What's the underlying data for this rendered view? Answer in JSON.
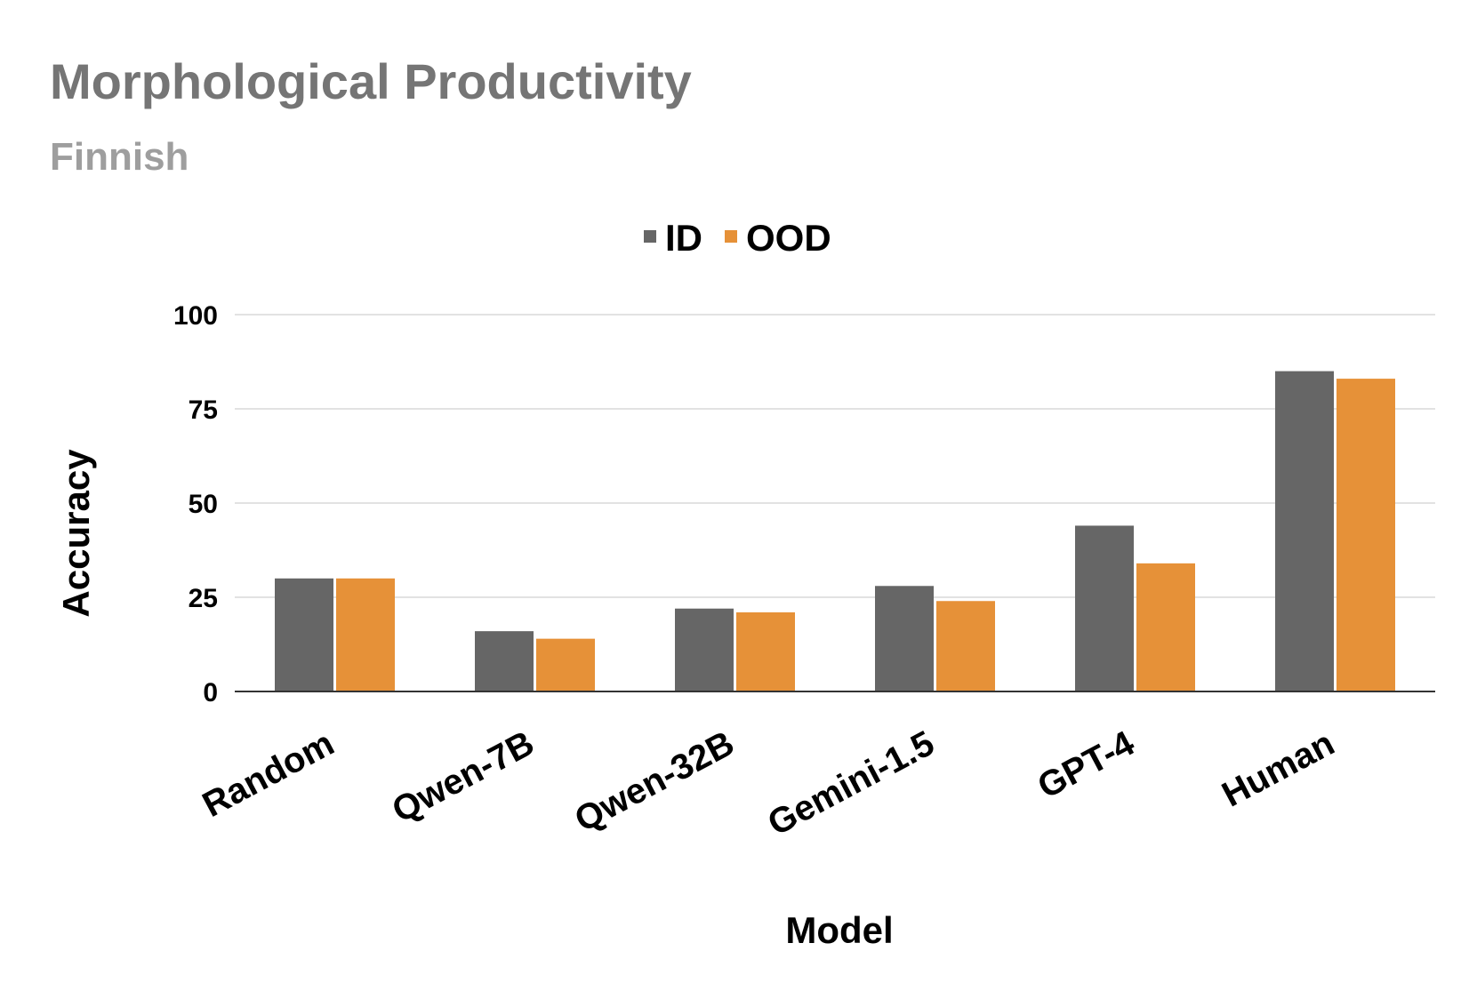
{
  "colors": {
    "id_series": "#666666",
    "ood_series": "#E69138",
    "title": "#757575",
    "subtitle": "#9e9e9e",
    "grid": "#d9d9d9",
    "axis": "#333333"
  },
  "chart_data": {
    "type": "bar",
    "title": "Morphological Productivity",
    "subtitle": "Finnish",
    "xlabel": "Model",
    "ylabel": "Accuracy",
    "categories": [
      "Random",
      "Qwen-7B",
      "Qwen-32B",
      "Gemini-1.5",
      "GPT-4",
      "Human"
    ],
    "series": [
      {
        "name": "ID",
        "color": "#666666",
        "values": [
          30,
          16,
          22,
          28,
          44,
          85
        ]
      },
      {
        "name": "OOD",
        "color": "#E69138",
        "values": [
          30,
          14,
          21,
          24,
          34,
          83
        ]
      }
    ],
    "ylim": [
      0,
      100
    ],
    "yticks": [
      "0",
      "25",
      "50",
      "75",
      "100"
    ],
    "grid": true,
    "legend_position": "top-center"
  }
}
